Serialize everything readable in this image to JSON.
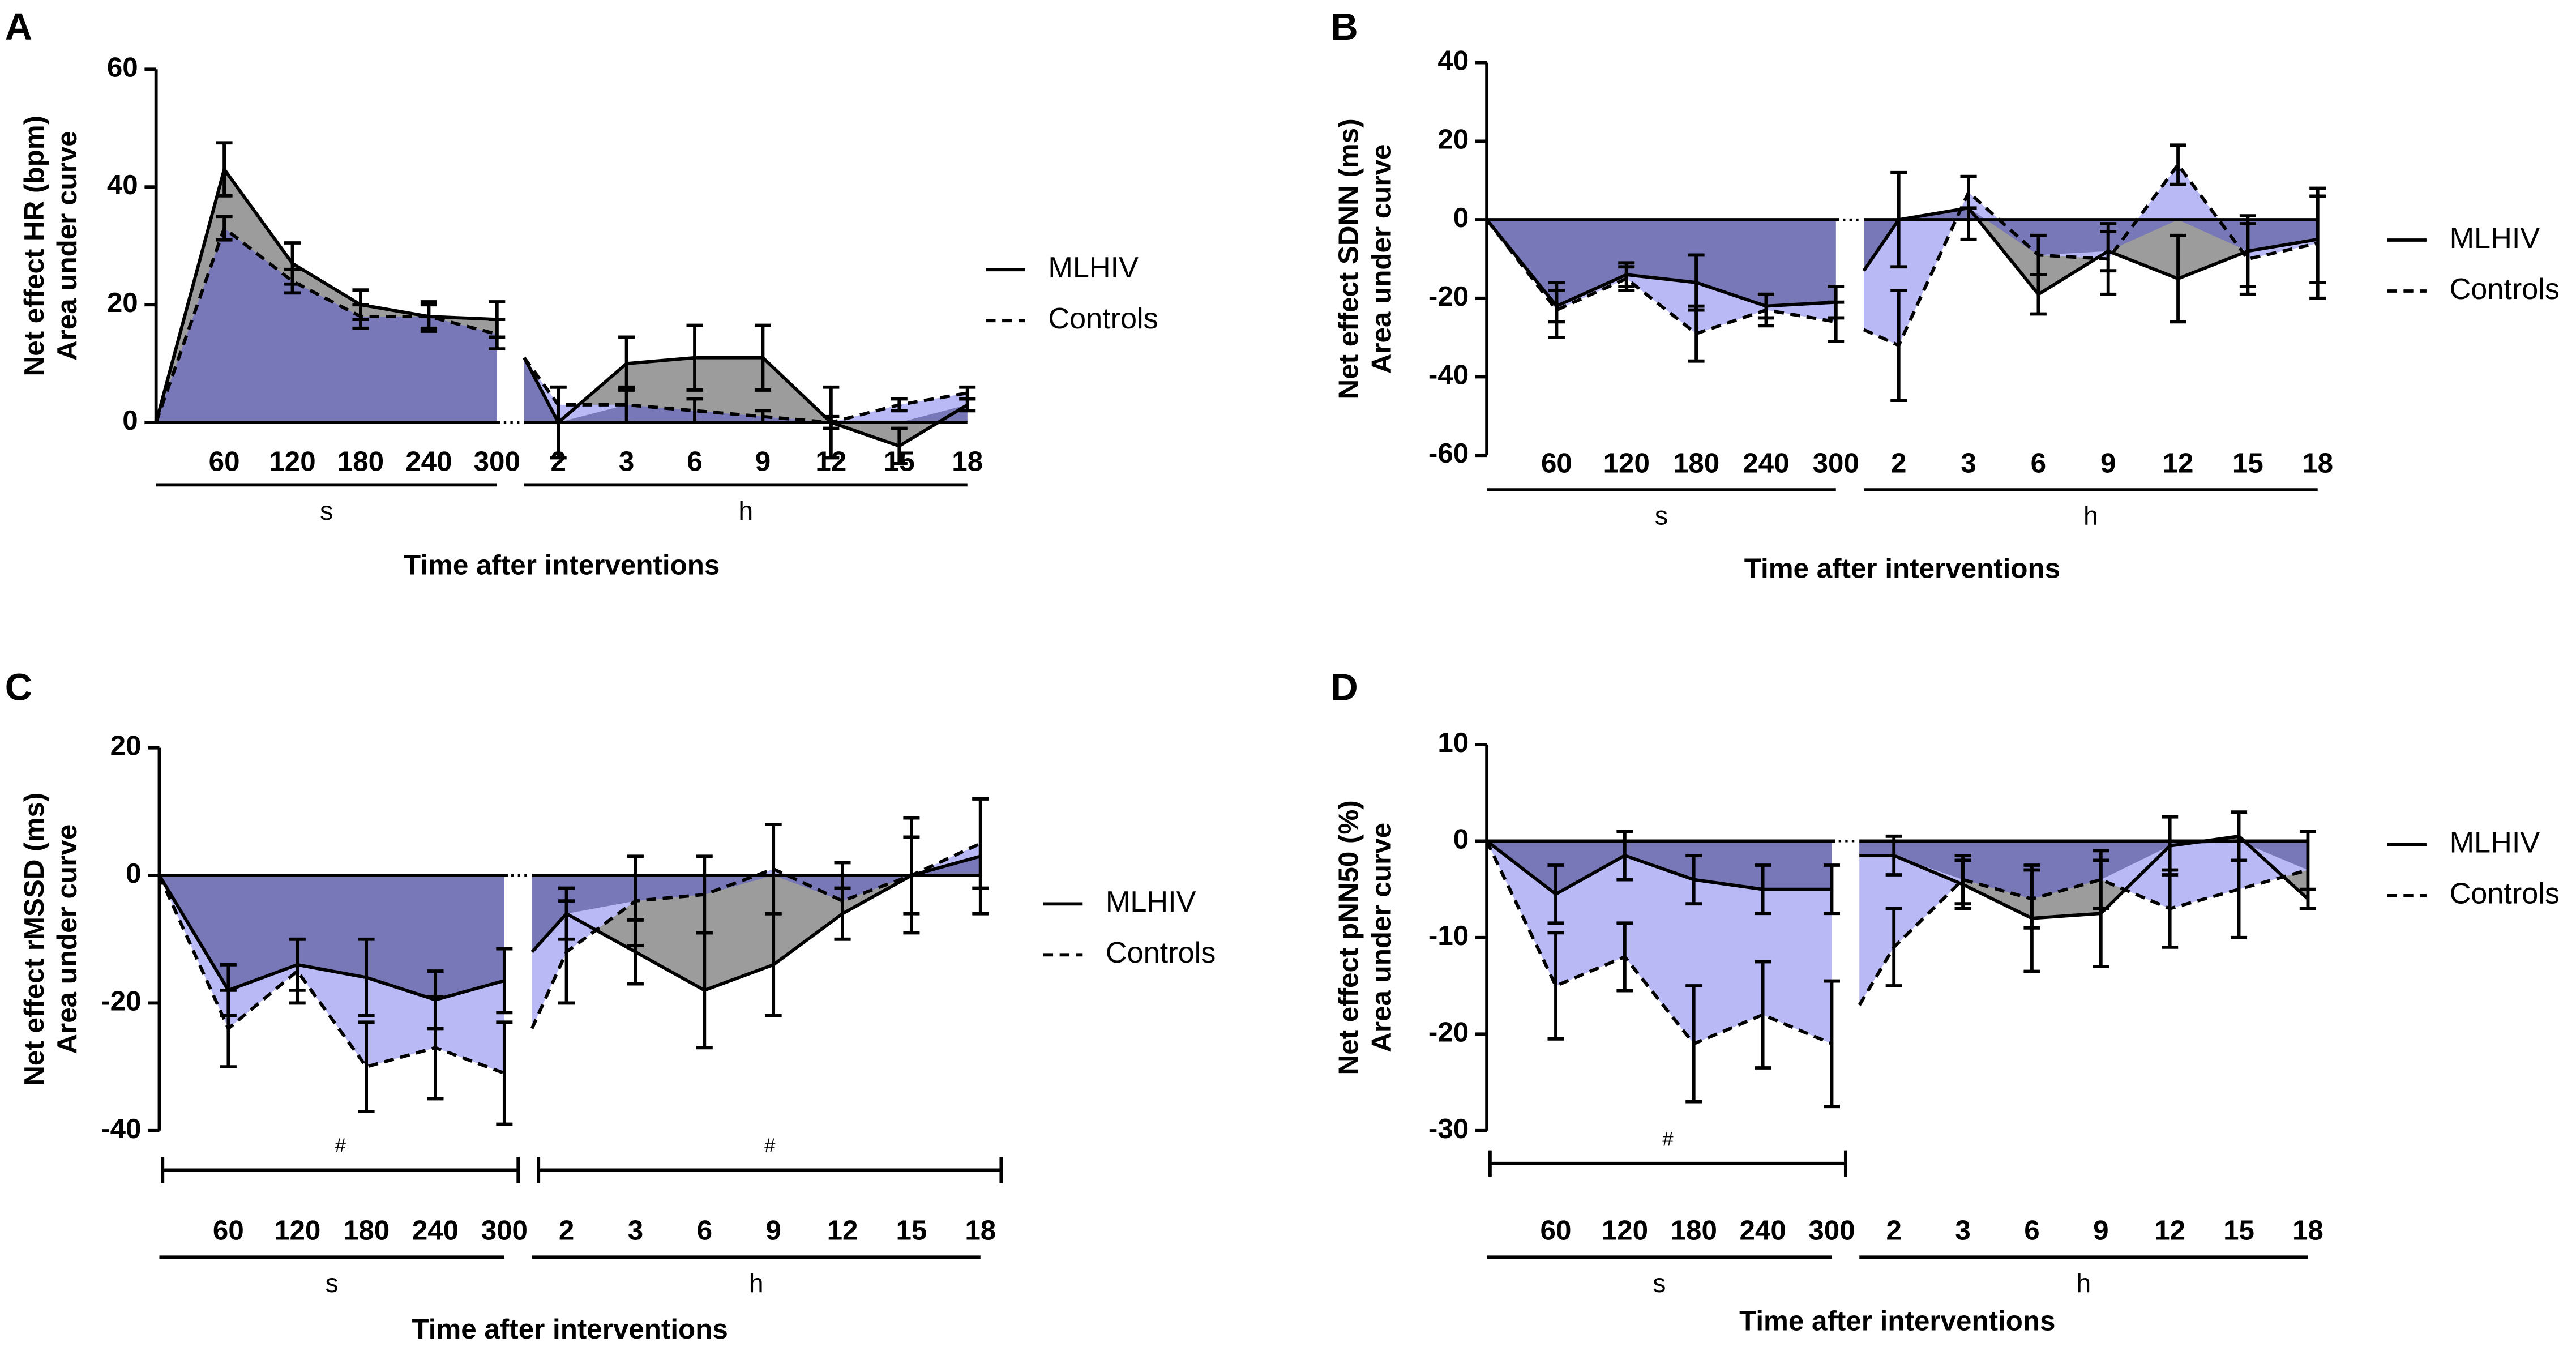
{
  "chart_data": [
    {
      "type": "line",
      "panel": "A",
      "ylabel": [
        "Net effect HR (bpm)",
        "Area under curve"
      ],
      "xlabel": "Time after interventions",
      "categories": [
        null,
        "60",
        "120",
        "180",
        "240",
        "300",
        null,
        "2",
        "3",
        "6",
        "9",
        "12",
        "15",
        "18"
      ],
      "groups": [
        {
          "label": "s",
          "count": 6
        },
        {
          "label": "h",
          "count": 8
        }
      ],
      "ylim": [
        0,
        60
      ],
      "yticks": [
        0,
        20,
        40,
        60
      ],
      "overlap_color": "#7878b8",
      "series": [
        {
          "name": "MLHIV",
          "color": "#000000",
          "line_style": "solid",
          "area_color": "#9c9c9c",
          "values": [
            0,
            43,
            27,
            20,
            18,
            17.5,
            11,
            0,
            10,
            11,
            11,
            0,
            -4,
            3
          ],
          "errors": [
            null,
            4.5,
            3.5,
            2.5,
            2.5,
            3,
            null,
            6,
            4.5,
            5.5,
            5.5,
            6,
            3,
            1
          ]
        },
        {
          "name": "Controls",
          "color": "#000000",
          "line_style": "dashed",
          "area_color": "#b9b9f6",
          "values": [
            0,
            33,
            24,
            18,
            18,
            15,
            11,
            3,
            3,
            2,
            1,
            0,
            3,
            5
          ],
          "errors": [
            null,
            2,
            2,
            2,
            2,
            2.5,
            null,
            3,
            3,
            2,
            1,
            1,
            1,
            1
          ]
        }
      ]
    },
    {
      "type": "line",
      "panel": "B",
      "ylabel": [
        "Net effect SDNN (ms)",
        "Area under curve"
      ],
      "xlabel": "Time after interventions",
      "categories": [
        null,
        "60",
        "120",
        "180",
        "240",
        "300",
        null,
        "2",
        "3",
        "6",
        "9",
        "12",
        "15",
        "18"
      ],
      "groups": [
        {
          "label": "s",
          "count": 6
        },
        {
          "label": "h",
          "count": 8
        }
      ],
      "ylim": [
        -60,
        40
      ],
      "yticks": [
        -60,
        -40,
        -20,
        0,
        20,
        40
      ],
      "overlap_color": "#7878b8",
      "series": [
        {
          "name": "MLHIV",
          "color": "#000000",
          "line_style": "solid",
          "area_color": "#9c9c9c",
          "values": [
            0,
            -22,
            -14,
            -16,
            -22,
            -21,
            -13,
            0,
            3,
            -19,
            -8,
            -15,
            -8,
            -5
          ],
          "errors": [
            null,
            4,
            3,
            7,
            3,
            4,
            null,
            12,
            8,
            5,
            5,
            11,
            9,
            11
          ]
        },
        {
          "name": "Controls",
          "color": "#000000",
          "line_style": "dashed",
          "area_color": "#b9b9f6",
          "values": [
            0,
            -23,
            -15,
            -29,
            -23,
            -26,
            -28,
            -32,
            7,
            -9,
            -10,
            14,
            -10,
            -6
          ],
          "errors": [
            null,
            7,
            3,
            7,
            4,
            5,
            null,
            14,
            4,
            5,
            9,
            5,
            9,
            14
          ]
        }
      ]
    },
    {
      "type": "line",
      "panel": "C",
      "ylabel": [
        "Net effect rMSSD (ms)",
        "Area under curve"
      ],
      "xlabel": "Time after interventions",
      "categories": [
        null,
        "60",
        "120",
        "180",
        "240",
        "300",
        null,
        "2",
        "3",
        "6",
        "9",
        "12",
        "15",
        "18"
      ],
      "groups": [
        {
          "label": "s",
          "count": 6,
          "annotation": "#"
        },
        {
          "label": "h",
          "count": 8,
          "annotation": "#"
        }
      ],
      "ylim": [
        -40,
        20
      ],
      "yticks": [
        -40,
        -20,
        0,
        20
      ],
      "overlap_color": "#7878b8",
      "series": [
        {
          "name": "MLHIV",
          "color": "#000000",
          "line_style": "solid",
          "area_color": "#9c9c9c",
          "values": [
            0,
            -18,
            -14,
            -16,
            -19.5,
            -16.5,
            -12,
            -6,
            -12,
            -18,
            -14,
            -6,
            0,
            3
          ],
          "errors": [
            null,
            4,
            4,
            6,
            4.5,
            5,
            null,
            4,
            5,
            9,
            8,
            4,
            6,
            9
          ]
        },
        {
          "name": "Controls",
          "color": "#000000",
          "line_style": "dashed",
          "area_color": "#b9b9f6",
          "values": [
            0,
            -24,
            -15,
            -30,
            -27,
            -31,
            -24,
            -12,
            -4,
            -3,
            1,
            -4,
            0,
            5
          ],
          "errors": [
            null,
            6,
            5,
            7,
            8,
            8,
            null,
            8,
            7,
            6,
            7,
            6,
            9,
            7
          ]
        }
      ]
    },
    {
      "type": "line",
      "panel": "D",
      "ylabel": [
        "Net effect pNN50 (%)",
        "Area under curve"
      ],
      "xlabel": "Time after interventions",
      "categories": [
        null,
        "60",
        "120",
        "180",
        "240",
        "300",
        null,
        "2",
        "3",
        "6",
        "9",
        "12",
        "15",
        "18"
      ],
      "groups": [
        {
          "label": "s",
          "count": 6,
          "annotation": "#"
        },
        {
          "label": "h",
          "count": 8
        }
      ],
      "ylim": [
        -30,
        10
      ],
      "yticks": [
        -30,
        -20,
        -10,
        0,
        10
      ],
      "overlap_color": "#7878b8",
      "series": [
        {
          "name": "MLHIV",
          "color": "#000000",
          "line_style": "solid",
          "area_color": "#9c9c9c",
          "values": [
            0,
            -5.5,
            -1.5,
            -4,
            -5,
            -5,
            -1.5,
            -1.5,
            -4.5,
            -8,
            -7.5,
            -0.5,
            0.5,
            -6
          ],
          "errors": [
            null,
            3,
            2.5,
            2.5,
            2.5,
            2.5,
            null,
            2,
            2.5,
            5.5,
            5.5,
            3,
            2.5,
            1
          ]
        },
        {
          "name": "Controls",
          "color": "#000000",
          "line_style": "dashed",
          "area_color": "#b9b9f6",
          "values": [
            0,
            -15,
            -12,
            -21,
            -18,
            -21,
            -17,
            -11,
            -4,
            -6,
            -4,
            -7,
            -5,
            -3
          ],
          "errors": [
            null,
            5.5,
            3.5,
            6,
            5.5,
            6.5,
            null,
            4,
            2.5,
            3,
            3,
            4,
            5,
            4
          ]
        }
      ]
    }
  ]
}
